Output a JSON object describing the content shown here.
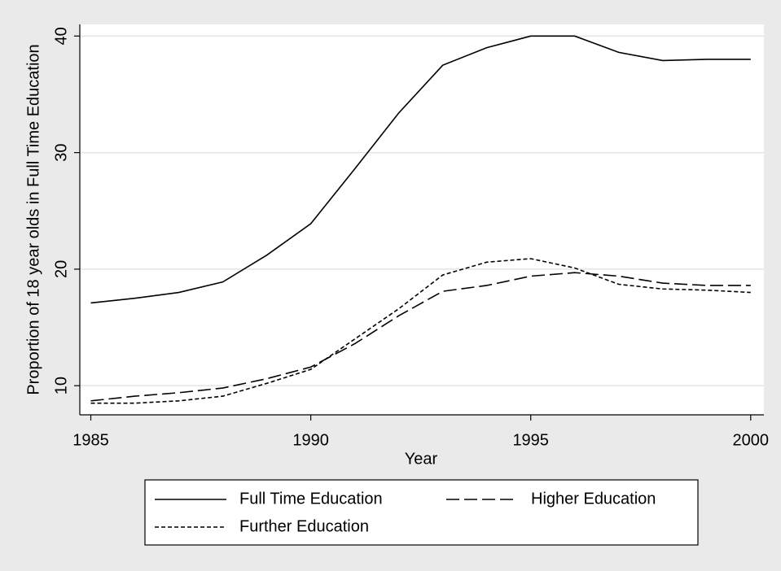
{
  "chart_data": {
    "type": "line",
    "x_label": "Year",
    "y_label": "Proportion of 18 year olds in Full Time Education",
    "x": [
      1985,
      1986,
      1987,
      1988,
      1989,
      1990,
      1991,
      1992,
      1993,
      1994,
      1995,
      1996,
      1997,
      1998,
      1999,
      2000
    ],
    "series": [
      {
        "name": "Full Time Education",
        "color": "#000000",
        "dash": "solid",
        "values": [
          17.1,
          17.5,
          18.0,
          18.9,
          21.2,
          23.9,
          28.6,
          33.4,
          37.5,
          39.0,
          40.0,
          40.0,
          38.6,
          37.9,
          38.0,
          38.0
        ]
      },
      {
        "name": "Higher Education",
        "color": "#000000",
        "dash": "longdash",
        "values": [
          8.7,
          9.1,
          9.4,
          9.8,
          10.6,
          11.6,
          13.6,
          16.0,
          18.1,
          18.6,
          19.4,
          19.7,
          19.4,
          18.8,
          18.6,
          18.6
        ]
      },
      {
        "name": "Further Education",
        "color": "#000000",
        "dash": "shortdash",
        "values": [
          8.5,
          8.5,
          8.7,
          9.1,
          10.2,
          11.4,
          14.0,
          16.6,
          19.5,
          20.6,
          20.9,
          20.1,
          18.7,
          18.3,
          18.2,
          18.0
        ]
      }
    ],
    "xlim": [
      1984.75,
      2000.3
    ],
    "xticks": [
      1985,
      1990,
      1995,
      2000
    ],
    "ylim": [
      7.5,
      41
    ],
    "yticks": [
      10,
      20,
      30,
      40
    ],
    "grid": true
  }
}
